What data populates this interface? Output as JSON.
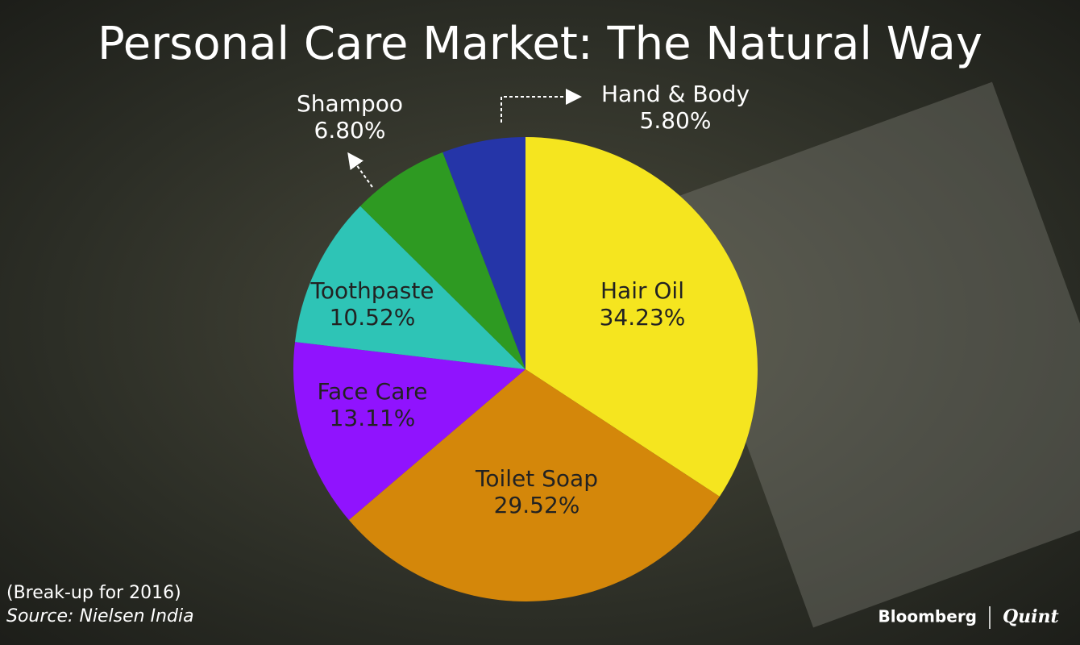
{
  "chart_data": {
    "type": "pie",
    "title": "Personal Care Market: The Natural Way",
    "categories": [
      "Hair Oil",
      "Toilet Soap",
      "Face Care",
      "Toothpaste",
      "Shampoo",
      "Hand & Body"
    ],
    "values": [
      34.23,
      29.52,
      13.11,
      10.52,
      6.8,
      5.8
    ],
    "value_labels": [
      "34.23%",
      "29.52%",
      "13.11%",
      "10.52%",
      "6.80%",
      "5.80%"
    ],
    "colors": [
      "#f5e51f",
      "#d4870a",
      "#9013fe",
      "#2ec4b6",
      "#2e9a22",
      "#2535a8"
    ],
    "notes": [
      "(Break-up for 2016)",
      "Source: Nielsen India"
    ],
    "branding": [
      "Bloomberg",
      "Quint"
    ]
  }
}
